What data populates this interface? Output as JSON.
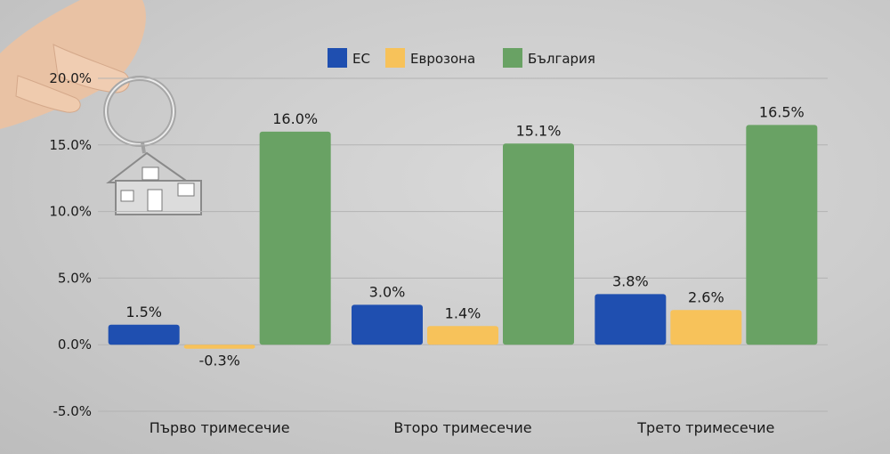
{
  "chart_data": {
    "type": "bar",
    "categories": [
      "Първо тримесечие",
      "Второ тримесечие",
      "Трето тримесечие"
    ],
    "series": [
      {
        "name": "ЕС",
        "color": "#1f4fb0",
        "values": [
          1.5,
          3.0,
          3.8
        ],
        "labels": [
          "1.5%",
          "3.0%",
          "3.8%"
        ]
      },
      {
        "name": "Еврозона",
        "color": "#f7c25a",
        "values": [
          -0.3,
          1.4,
          2.6
        ],
        "labels": [
          "-0.3%",
          "1.4%",
          "2.6%"
        ]
      },
      {
        "name": "България",
        "color": "#69a264",
        "values": [
          16.0,
          15.1,
          16.5
        ],
        "labels": [
          "16.0%",
          "15.1%",
          "16.5%"
        ]
      }
    ],
    "yticks": [
      20,
      15,
      10,
      5,
      0,
      -5
    ],
    "ytick_labels": [
      "20.0%",
      "15.0%",
      "10.0%",
      "5.0%",
      "0.0%",
      "-5.0%"
    ],
    "ylim": [
      -5,
      20
    ],
    "grid": true,
    "legend": "top-center",
    "decoration_icons": [
      "hand-holding-house-keychain-icon"
    ]
  }
}
